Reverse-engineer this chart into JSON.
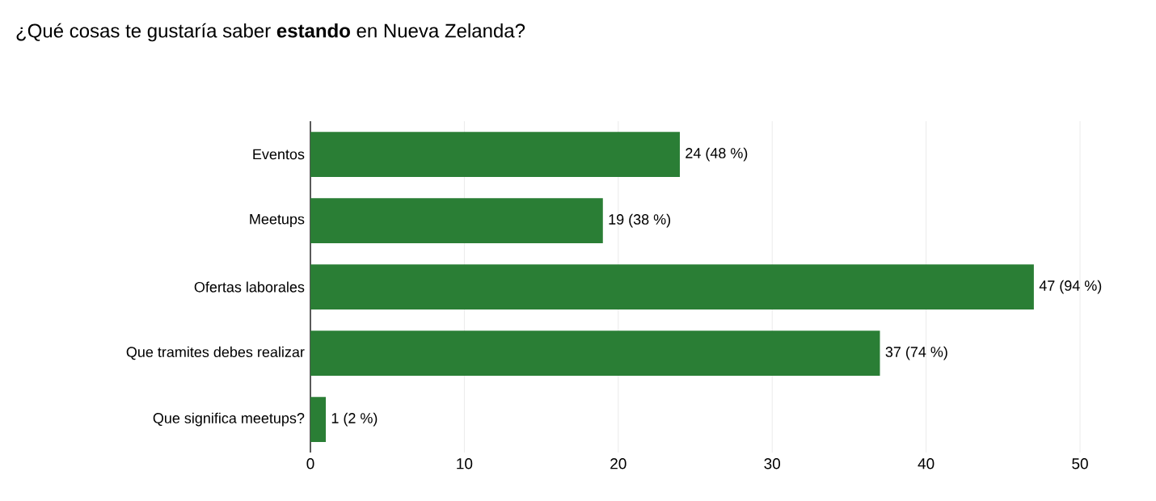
{
  "chart_data": {
    "type": "bar",
    "orientation": "horizontal",
    "title": "¿Qué cosas te gustaría saber **estando** en Nueva Zelanda?",
    "categories": [
      "Eventos",
      "Meetups",
      "Ofertas laborales",
      "Que tramites debes realizar",
      "Que significa meetups?"
    ],
    "values": [
      24,
      19,
      47,
      37,
      1
    ],
    "value_labels": [
      "24 (48 %)",
      "19 (38 %)",
      "47 (94 %)",
      "37 (74 %)",
      "1 (2 %)"
    ],
    "color": "#2a7e35",
    "xlim": [
      0,
      50
    ],
    "xticks": [
      0,
      10,
      20,
      30,
      40,
      50
    ],
    "grid": "x"
  }
}
